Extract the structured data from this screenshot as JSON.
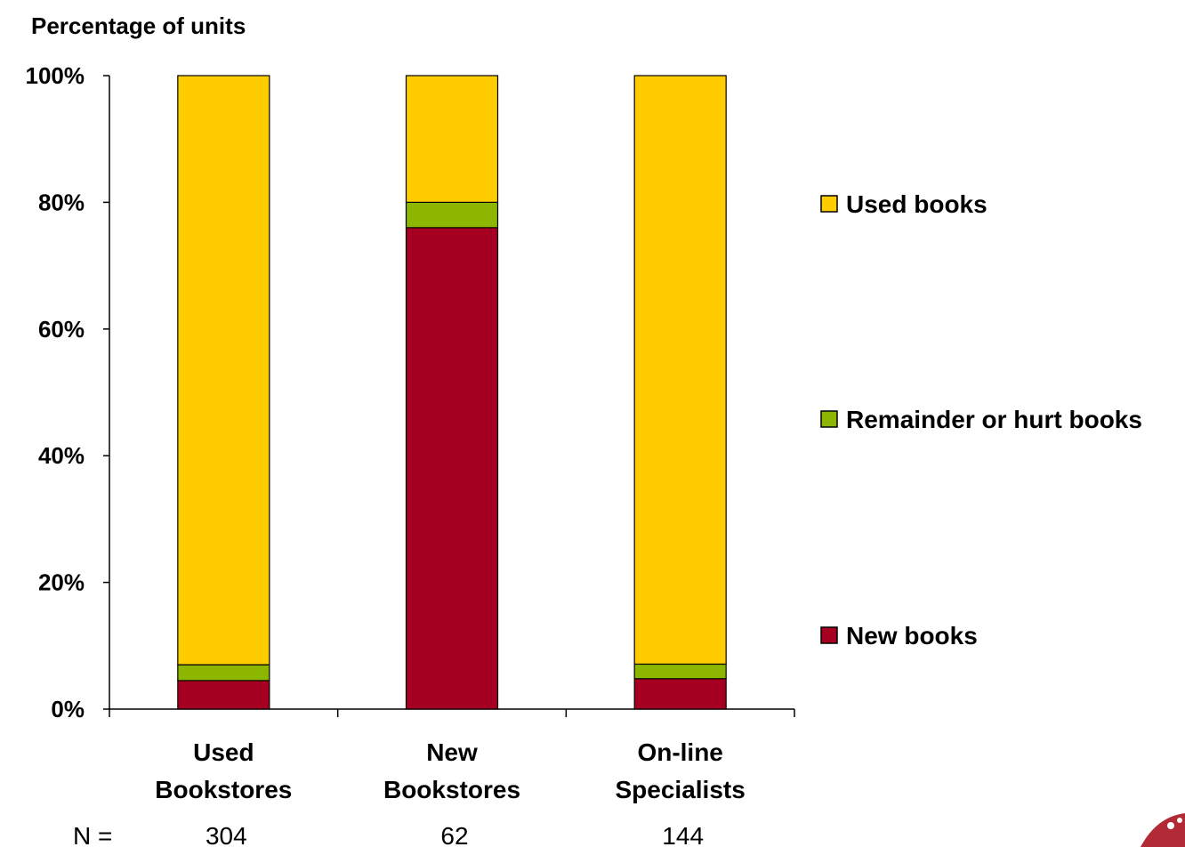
{
  "chart_data": {
    "type": "bar",
    "stacked": true,
    "title": "",
    "ylabel": "Percentage of units",
    "xlabel": "",
    "ylim": [
      0,
      100
    ],
    "yticks": [
      "0%",
      "20%",
      "40%",
      "60%",
      "80%",
      "100%"
    ],
    "ytick_values": [
      0,
      20,
      40,
      60,
      80,
      100
    ],
    "grid": false,
    "legend_position": "right",
    "categories": [
      [
        "Used",
        "Bookstores"
      ],
      [
        "New",
        "Bookstores"
      ],
      [
        "On-line",
        "Specialists"
      ]
    ],
    "series": [
      {
        "name": "New books",
        "color": "#A50021",
        "values": [
          4.5,
          76,
          4.8
        ]
      },
      {
        "name": "Remainder or hurt books",
        "color": "#8DB600",
        "values": [
          2.5,
          4,
          2.3
        ]
      },
      {
        "name": "Used books",
        "color": "#FFCC00",
        "values": [
          93,
          20,
          92.9
        ]
      }
    ],
    "legend_order": [
      "Used books",
      "Remainder or hurt books",
      "New books"
    ],
    "n_label": "N =",
    "n_values": [
      "304",
      "62",
      "144"
    ]
  }
}
